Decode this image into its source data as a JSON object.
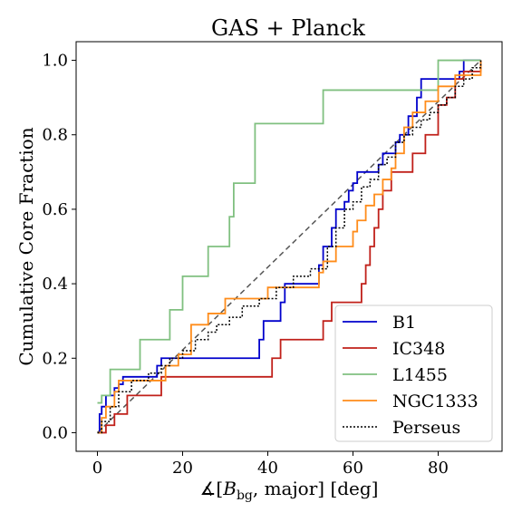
{
  "chart_data": {
    "type": "line",
    "title": "GAS + Planck",
    "xlabel": "∡[B_bg, major] [deg]",
    "xlabel_parts": {
      "prefix": "∡[",
      "B": "B",
      "sub": "bg",
      "suffix": ", major] [deg]"
    },
    "ylabel": "Cumulative Core Fraction",
    "xlim": [
      -5,
      95
    ],
    "ylim": [
      -0.05,
      1.05
    ],
    "xticks": [
      0,
      20,
      40,
      60,
      80
    ],
    "yticks": [
      0.0,
      0.2,
      0.4,
      0.6,
      0.8,
      1.0
    ],
    "xtick_labels": [
      "0",
      "20",
      "40",
      "60",
      "80"
    ],
    "ytick_labels": [
      "0.0",
      "0.2",
      "0.4",
      "0.6",
      "0.8",
      "1.0"
    ],
    "grid": false,
    "legend_position": "lower-right",
    "reference_line": {
      "x": [
        0,
        90
      ],
      "y": [
        0,
        1
      ],
      "style": "dashed",
      "color": "#555555"
    },
    "series": [
      {
        "name": "B1",
        "color": "#0000cc",
        "style": "solid",
        "step": true,
        "x": [
          0,
          0.5,
          1,
          2,
          4,
          5,
          6,
          14,
          15,
          37,
          38,
          39,
          43,
          44,
          52,
          53,
          55,
          56,
          58,
          59,
          60,
          61,
          62,
          66,
          67,
          70,
          71,
          73,
          75,
          76,
          84,
          85,
          86,
          87,
          90
        ],
        "y": [
          0,
          0.05,
          0.07,
          0.1,
          0.12,
          0.13,
          0.15,
          0.18,
          0.2,
          0.2,
          0.25,
          0.3,
          0.35,
          0.4,
          0.45,
          0.5,
          0.55,
          0.6,
          0.62,
          0.65,
          0.67,
          0.7,
          0.7,
          0.72,
          0.75,
          0.78,
          0.8,
          0.85,
          0.9,
          0.95,
          0.95,
          0.97,
          1.0,
          1.0,
          1.0
        ]
      },
      {
        "name": "IC348",
        "color": "#c0201a",
        "style": "solid",
        "step": true,
        "x": [
          0,
          2,
          4,
          7,
          15,
          41,
          43,
          53,
          55,
          62,
          63,
          64,
          65,
          66,
          67,
          69,
          74,
          77,
          80,
          82,
          84,
          86,
          90
        ],
        "y": [
          0,
          0.02,
          0.05,
          0.1,
          0.15,
          0.2,
          0.25,
          0.3,
          0.35,
          0.4,
          0.45,
          0.5,
          0.55,
          0.6,
          0.65,
          0.7,
          0.75,
          0.8,
          0.88,
          0.9,
          0.95,
          0.97,
          1.0
        ]
      },
      {
        "name": "L1455",
        "color": "#80c080",
        "style": "solid",
        "step": true,
        "x": [
          0,
          1,
          3,
          10,
          17,
          20,
          26,
          31,
          32,
          37,
          53,
          80,
          83,
          90
        ],
        "y": [
          0.08,
          0.1,
          0.17,
          0.25,
          0.33,
          0.42,
          0.5,
          0.58,
          0.67,
          0.83,
          0.92,
          1.0,
          1.0,
          1.0
        ]
      },
      {
        "name": "NGC1333",
        "color": "#ff8c1a",
        "style": "solid",
        "step": true,
        "x": [
          0,
          1,
          2,
          4,
          5,
          9,
          16,
          19,
          22,
          24,
          26,
          30,
          32,
          38,
          40,
          44,
          52,
          53,
          56,
          60,
          61,
          63,
          65,
          67,
          69,
          70,
          72,
          74,
          77,
          80,
          84,
          90
        ],
        "y": [
          0,
          0.04,
          0.07,
          0.11,
          0.14,
          0.14,
          0.18,
          0.21,
          0.29,
          0.29,
          0.32,
          0.36,
          0.36,
          0.36,
          0.39,
          0.39,
          0.43,
          0.46,
          0.5,
          0.54,
          0.57,
          0.61,
          0.64,
          0.68,
          0.71,
          0.75,
          0.82,
          0.86,
          0.89,
          0.93,
          0.96,
          1.0
        ]
      },
      {
        "name": "Perseus",
        "color": "#000000",
        "style": "dotted",
        "step": true,
        "x": [
          0,
          1,
          3,
          5,
          8,
          12,
          15,
          17,
          20,
          23,
          26,
          28,
          31,
          34,
          38,
          42,
          46,
          50,
          54,
          56,
          58,
          60,
          62,
          64,
          66,
          68,
          70,
          72,
          74,
          76,
          78,
          80,
          82,
          84,
          86,
          88,
          90
        ],
        "y": [
          0,
          0.03,
          0.07,
          0.11,
          0.14,
          0.16,
          0.18,
          0.2,
          0.22,
          0.25,
          0.27,
          0.29,
          0.31,
          0.34,
          0.36,
          0.39,
          0.42,
          0.44,
          0.5,
          0.55,
          0.6,
          0.62,
          0.66,
          0.68,
          0.72,
          0.74,
          0.78,
          0.8,
          0.82,
          0.84,
          0.86,
          0.88,
          0.9,
          0.93,
          0.95,
          0.98,
          1.0
        ]
      }
    ]
  }
}
